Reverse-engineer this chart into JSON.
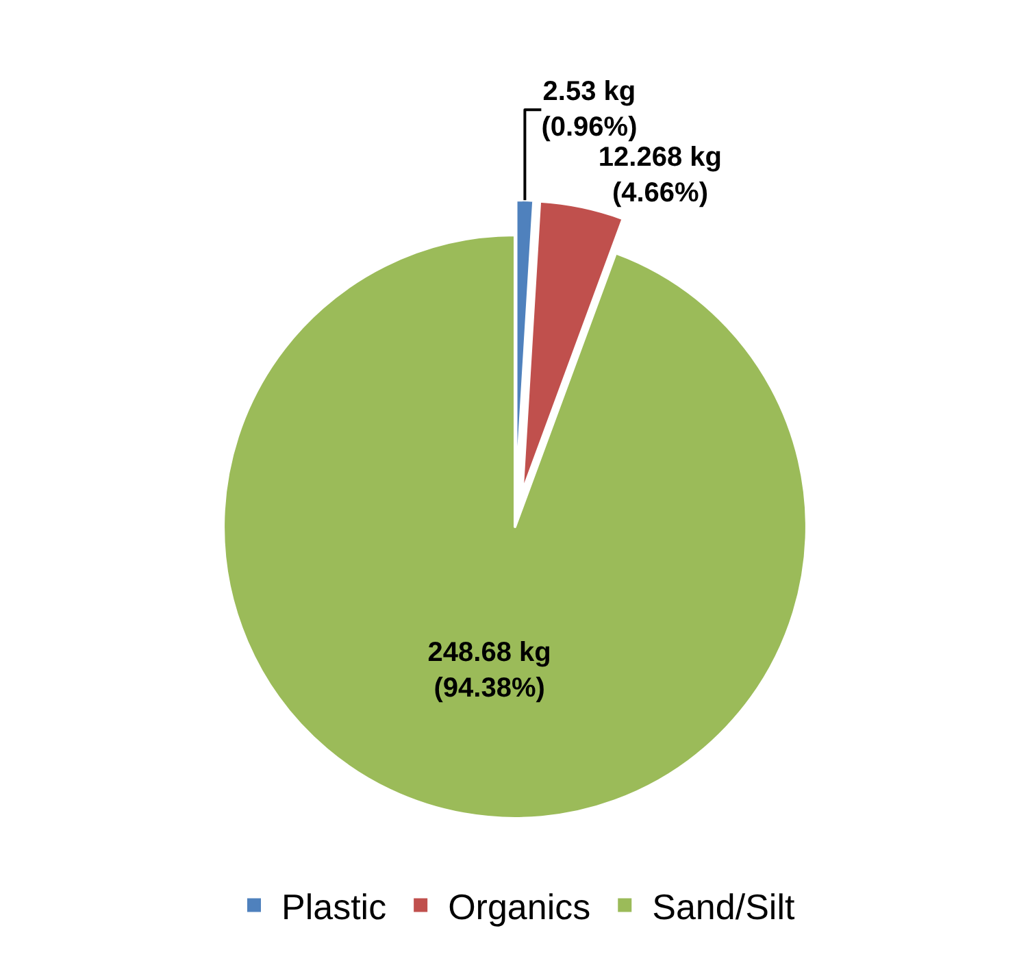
{
  "chart_data": {
    "type": "pie",
    "categories": [
      "Plastic",
      "Organics",
      "Sand/Silt"
    ],
    "values": [
      2.53,
      12.268,
      248.68
    ],
    "colors": [
      "#4f81bd",
      "#c0504d",
      "#9bbb59"
    ],
    "value_labels": [
      "2.53 kg\n(0.96%)",
      "12.268 kg\n(4.66%)",
      "248.68 kg\n(94.38%)"
    ],
    "legend": "bottom"
  }
}
